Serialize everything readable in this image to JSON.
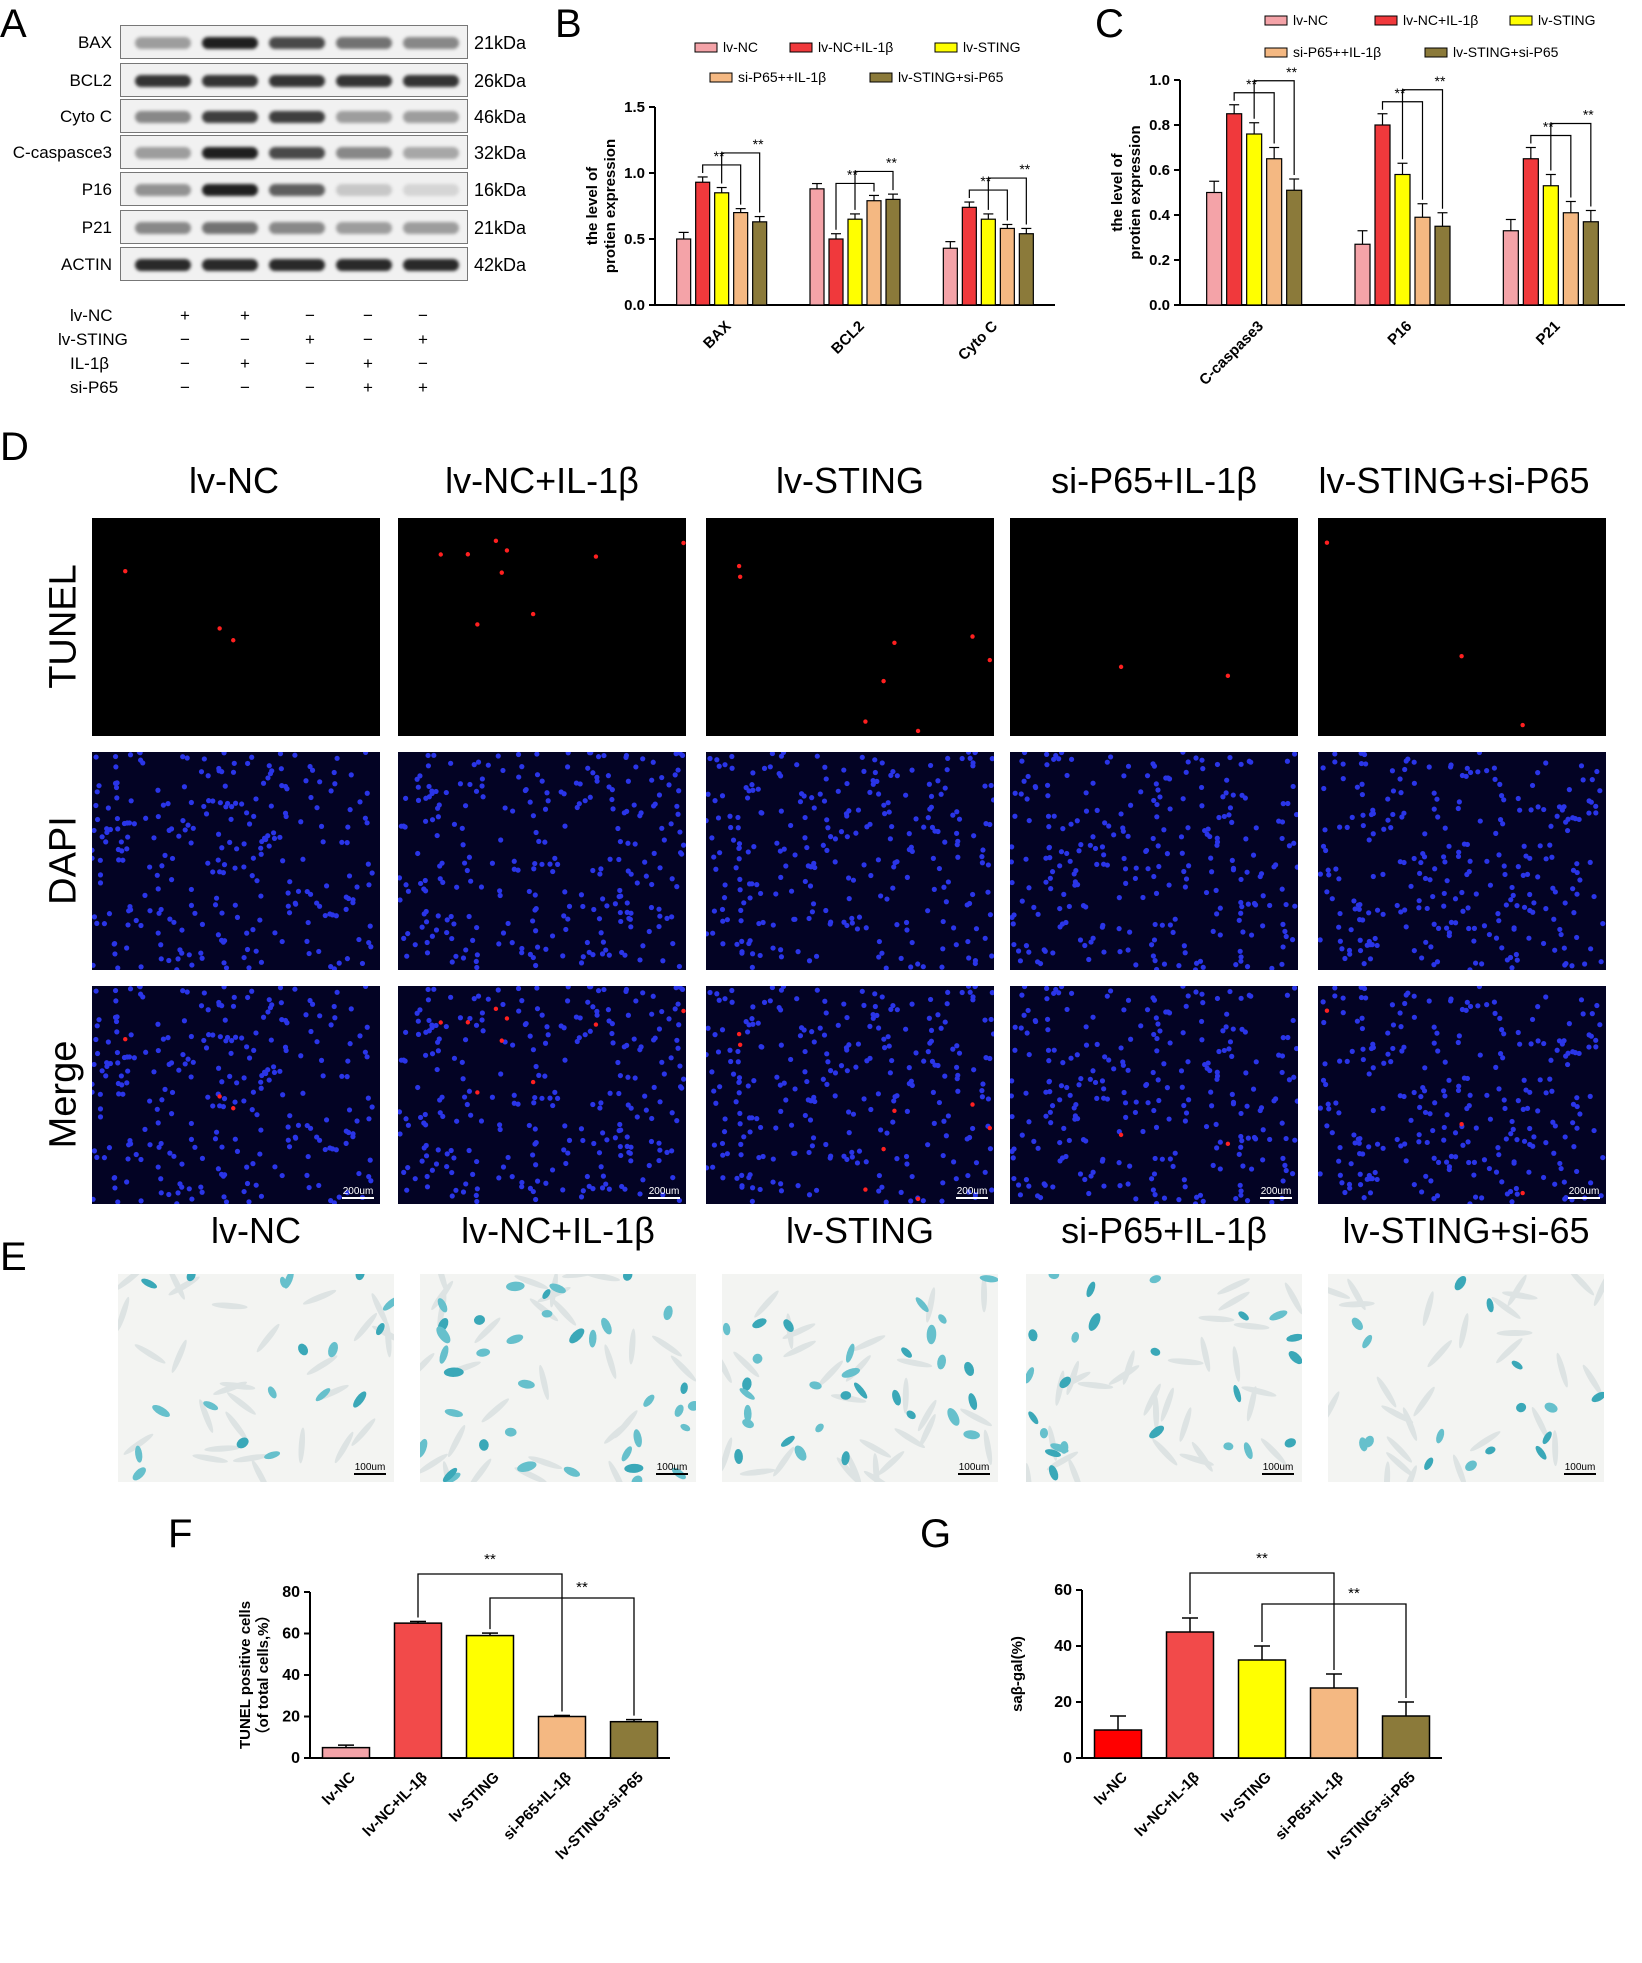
{
  "panels": {
    "A": "A",
    "B": "B",
    "C": "C",
    "D": "D",
    "E": "E",
    "F": "F",
    "G": "G"
  },
  "western_blot": {
    "rows": [
      {
        "name": "BAX",
        "kda": "21kDa"
      },
      {
        "name": "BCL2",
        "kda": "26kDa"
      },
      {
        "name": "Cyto C",
        "kda": "46kDa"
      },
      {
        "name": "C-caspasce3",
        "kda": "32kDa"
      },
      {
        "name": "P16",
        "kda": "16kDa"
      },
      {
        "name": "P21",
        "kda": "21kDa"
      },
      {
        "name": "ACTIN",
        "kda": "42kDa"
      }
    ],
    "treatments": [
      {
        "name": "lv-NC",
        "marks": [
          "+",
          "+",
          "−",
          "−",
          "−"
        ]
      },
      {
        "name": "lv-STING",
        "marks": [
          "−",
          "−",
          "+",
          "−",
          "+"
        ]
      },
      {
        "name": "IL-1β",
        "marks": [
          "−",
          "+",
          "−",
          "+",
          "−"
        ]
      },
      {
        "name": "si-P65",
        "marks": [
          "−",
          "−",
          "−",
          "+",
          "+"
        ]
      }
    ]
  },
  "colors": {
    "lvnc": "#f4a3a8",
    "lvncil": "#f0393c",
    "sting": "#ffff00",
    "sip65": "#f4b882",
    "stingsi": "#8b7a3a"
  },
  "chart_data": [
    {
      "type": "bar",
      "panel": "B",
      "ylabel": "the level of protien expression",
      "ylim": [
        0,
        1.5
      ],
      "yticks": [
        "0.0",
        "0.5",
        "1.0",
        "1.5"
      ],
      "categories": [
        "BAX",
        "BCL2",
        "Cyto C"
      ],
      "legend": [
        "lv-NC",
        "lv-NC+IL-1β",
        "lv-STING",
        "si-P65++IL-1β",
        "lv-STING+si-P65"
      ],
      "series": [
        {
          "name": "lv-NC",
          "values": [
            0.5,
            0.88,
            0.43
          ],
          "err": [
            0.05,
            0.04,
            0.05
          ]
        },
        {
          "name": "lv-NC+IL-1β",
          "values": [
            0.93,
            0.5,
            0.74
          ],
          "err": [
            0.04,
            0.04,
            0.04
          ]
        },
        {
          "name": "lv-STING",
          "values": [
            0.85,
            0.65,
            0.65
          ],
          "err": [
            0.04,
            0.04,
            0.04
          ]
        },
        {
          "name": "si-P65++IL-1β",
          "values": [
            0.7,
            0.79,
            0.58
          ],
          "err": [
            0.03,
            0.04,
            0.03
          ]
        },
        {
          "name": "lv-STING+si-P65",
          "values": [
            0.63,
            0.8,
            0.54
          ],
          "err": [
            0.04,
            0.04,
            0.04
          ]
        }
      ],
      "sig": [
        "**",
        "**",
        "**",
        "**",
        "**",
        "**"
      ]
    },
    {
      "type": "bar",
      "panel": "C",
      "ylabel": "the level of protien expression",
      "ylim": [
        0,
        1.0
      ],
      "yticks": [
        "0.0",
        "0.2",
        "0.4",
        "0.6",
        "0.8",
        "1.0"
      ],
      "categories": [
        "C-caspase3",
        "P16",
        "P21"
      ],
      "legend": [
        "lv-NC",
        "lv-NC+IL-1β",
        "lv-STING",
        "si-P65++IL-1β",
        "lv-STING+si-P65"
      ],
      "series": [
        {
          "name": "lv-NC",
          "values": [
            0.5,
            0.27,
            0.33
          ],
          "err": [
            0.05,
            0.06,
            0.05
          ]
        },
        {
          "name": "lv-NC+IL-1β",
          "values": [
            0.85,
            0.8,
            0.65
          ],
          "err": [
            0.04,
            0.05,
            0.05
          ]
        },
        {
          "name": "lv-STING",
          "values": [
            0.76,
            0.58,
            0.53
          ],
          "err": [
            0.05,
            0.05,
            0.05
          ]
        },
        {
          "name": "si-P65++IL-1β",
          "values": [
            0.65,
            0.39,
            0.41
          ],
          "err": [
            0.05,
            0.06,
            0.05
          ]
        },
        {
          "name": "lv-STING+si-P65",
          "values": [
            0.51,
            0.35,
            0.37
          ],
          "err": [
            0.05,
            0.06,
            0.05
          ]
        }
      ],
      "sig": [
        "**",
        "**",
        "**",
        "**",
        "**",
        "**"
      ]
    },
    {
      "type": "bar",
      "panel": "F",
      "ylabel": "TUNEL positive cells (of total cells,%)",
      "ylim": [
        0,
        80
      ],
      "yticks": [
        "0",
        "20",
        "40",
        "60",
        "80"
      ],
      "categories": [
        "lv-NC",
        "lv-NC+IL-1β",
        "lv-STING",
        "si-P65+IL-1β",
        "lv-STING+si-P65"
      ],
      "values": [
        5,
        65,
        59,
        20,
        17.5
      ],
      "err": [
        1.2,
        0.8,
        1.2,
        0.5,
        1.0
      ],
      "sig": [
        "**",
        "**"
      ]
    },
    {
      "type": "bar",
      "panel": "G",
      "ylabel": "saβ-gal(%)",
      "ylim": [
        0,
        60
      ],
      "yticks": [
        "0",
        "20",
        "40",
        "60"
      ],
      "categories": [
        "lv-NC",
        "lv-NC+IL-1β",
        "lv-STING",
        "si-P65+IL-1β",
        "lv-STING+si-P65"
      ],
      "values": [
        10,
        45,
        35,
        25,
        15
      ],
      "err": [
        5,
        5,
        5,
        5,
        5
      ],
      "sig": [
        "**",
        "**"
      ]
    }
  ],
  "tunel_panel": {
    "columns": [
      "lv-NC",
      "lv-NC+IL-1β",
      "lv-STING",
      "si-P65+IL-1β",
      "lv-STING+si-P65"
    ],
    "rows": [
      "TUNEL",
      "DAPI",
      "Merge"
    ],
    "scale": "200um"
  },
  "sagal_panel": {
    "columns": [
      "lv-NC",
      "lv-NC+IL-1β",
      "lv-STING",
      "si-P65+IL-1β",
      "lv-STING+si-65"
    ],
    "scale": "100um"
  }
}
